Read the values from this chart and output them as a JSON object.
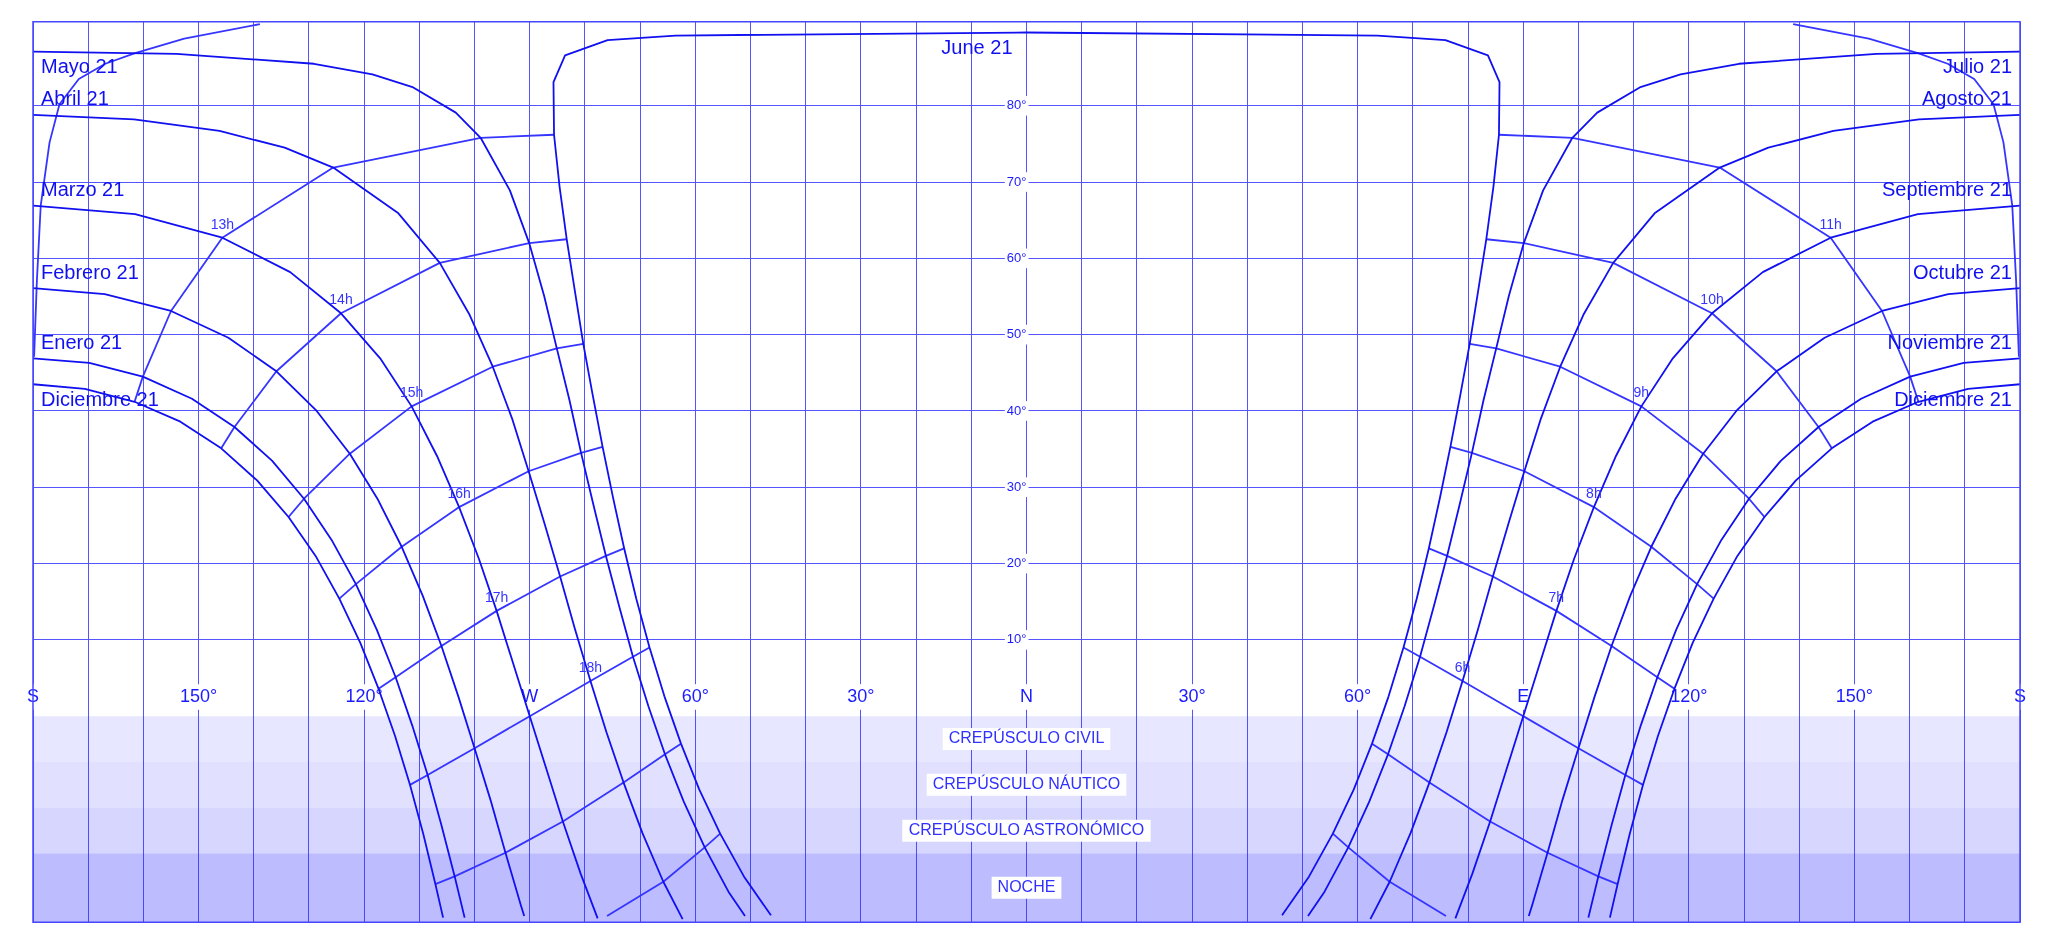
{
  "chart_data": {
    "type": "line",
    "xlim": [
      -180,
      180
    ],
    "ylim": [
      -27,
      91
    ],
    "xticks": [
      {
        "value": -180,
        "label": "S"
      },
      {
        "value": -170,
        "label": null
      },
      {
        "value": -160,
        "label": null
      },
      {
        "value": -150,
        "label": "150°"
      },
      {
        "value": -140,
        "label": null
      },
      {
        "value": -130,
        "label": null
      },
      {
        "value": -120,
        "label": "120°"
      },
      {
        "value": -110,
        "label": null
      },
      {
        "value": -100,
        "label": null
      },
      {
        "value": -90,
        "label": "W"
      },
      {
        "value": -80,
        "label": null
      },
      {
        "value": -70,
        "label": null
      },
      {
        "value": -60,
        "label": "60°"
      },
      {
        "value": -50,
        "label": null
      },
      {
        "value": -40,
        "label": null
      },
      {
        "value": -30,
        "label": "30°"
      },
      {
        "value": -20,
        "label": null
      },
      {
        "value": -10,
        "label": null
      },
      {
        "value": 0,
        "label": "N"
      },
      {
        "value": 10,
        "label": null
      },
      {
        "value": 20,
        "label": null
      },
      {
        "value": 30,
        "label": "30°"
      },
      {
        "value": 40,
        "label": null
      },
      {
        "value": 50,
        "label": null
      },
      {
        "value": 60,
        "label": "60°"
      },
      {
        "value": 70,
        "label": null
      },
      {
        "value": 80,
        "label": null
      },
      {
        "value": 90,
        "label": "E"
      },
      {
        "value": 100,
        "label": null
      },
      {
        "value": 110,
        "label": null
      },
      {
        "value": 120,
        "label": "120°"
      },
      {
        "value": 130,
        "label": null
      },
      {
        "value": 140,
        "label": null
      },
      {
        "value": 150,
        "label": "150°"
      },
      {
        "value": 160,
        "label": null
      },
      {
        "value": 170,
        "label": null
      },
      {
        "value": 180,
        "label": "S"
      }
    ],
    "yticks": [
      {
        "value": 10,
        "label": "10°"
      },
      {
        "value": 20,
        "label": "20°"
      },
      {
        "value": 30,
        "label": "30°"
      },
      {
        "value": 40,
        "label": "40°"
      },
      {
        "value": 50,
        "label": "50°"
      },
      {
        "value": 60,
        "label": "60°"
      },
      {
        "value": 70,
        "label": "70°"
      },
      {
        "value": 80,
        "label": "80°"
      }
    ],
    "grid": true,
    "bands": [
      {
        "axis": "y",
        "from": 0,
        "to": -6,
        "label": "CREPÚSCULO CIVIL",
        "color": "#3030ff"
      },
      {
        "axis": "y",
        "from": -6,
        "to": -12,
        "label": "CREPÚSCULO NÁUTICO",
        "color": "#3030ff"
      },
      {
        "axis": "y",
        "from": -12,
        "to": -18,
        "label": "CREPÚSCULO ASTRONÓMICO",
        "color": "#3030ff"
      },
      {
        "axis": "y",
        "from": -18,
        "to": -27,
        "label": "NOCHE",
        "color": "#3030ff"
      }
    ],
    "series": [
      {
        "name": "Diciembre 21",
        "color": "#1010f0",
        "x": [
          -180,
          -170.6,
          -161.6,
          -153.3,
          -145.9,
          -139.4,
          -133.7,
          -128.8,
          -124.5,
          -120.7,
          -117.4,
          -114.4,
          -111.7,
          -109.3,
          -107.1,
          -105.7
        ],
        "values": [
          43.5,
          42.9,
          41.2,
          38.6,
          35.1,
          30.9,
          26.1,
          21.0,
          15.4,
          9.6,
          3.6,
          -2.6,
          -9.0,
          -15.4,
          -22.0,
          -26.4
        ]
      },
      {
        "name": "Enero 21",
        "color": "#1010f0",
        "x": [
          -180,
          -169.8,
          -160.1,
          -151.2,
          -143.5,
          -136.7,
          -130.9,
          -125.9,
          -121.5,
          -117.7,
          -114.3,
          -111.3,
          -108.5,
          -106.0,
          -103.6,
          -101.8
        ],
        "values": [
          46.9,
          46.3,
          44.5,
          41.6,
          37.9,
          33.5,
          28.5,
          23.1,
          17.3,
          11.3,
          5.1,
          -1.2,
          -7.7,
          -14.3,
          -21.0,
          -26.4
        ]
      },
      {
        "name": "Febrero 21",
        "color": "#1010f0",
        "x": [
          -180,
          -167.0,
          -155.0,
          -144.6,
          -135.9,
          -128.6,
          -122.6,
          -117.6,
          -113.2,
          -109.4,
          -106.0,
          -102.9,
          -100.0,
          -97.1,
          -94.4,
          -91.6,
          -91.0
        ],
        "values": [
          56.1,
          55.3,
          53.1,
          49.6,
          45.2,
          40.0,
          34.4,
          28.5,
          22.2,
          15.8,
          9.2,
          2.5,
          -4.2,
          -11.0,
          -17.9,
          -24.8,
          -26.2
        ]
      },
      {
        "name": "Marzo 21",
        "color": "#1010f0",
        "x": [
          -180,
          -161.5,
          -145.7,
          -133.4,
          -124.2,
          -117.1,
          -111.4,
          -106.8,
          -102.8,
          -99.2,
          -96.0,
          -93.0,
          -90,
          -87.0,
          -84.0,
          -80.8,
          -77.7
        ],
        "values": [
          66.9,
          65.8,
          62.7,
          58.2,
          52.8,
          46.9,
          40.6,
          34.1,
          27.4,
          20.6,
          13.8,
          6.9,
          0,
          -6.9,
          -13.8,
          -20.6,
          -26.5
        ]
      },
      {
        "name": "Abril 21",
        "color": "#1010f0",
        "x": [
          -180,
          -161.7,
          -146.2,
          -134.4,
          -125.6,
          -113.8,
          -106.3,
          -100.9,
          -96.7,
          -93.2,
          -90.2,
          -87.3,
          -84.5,
          -81.8,
          -79.0,
          -76.1,
          -73.0,
          -69.6,
          -65.8,
          -62.3
        ],
        "values": [
          78.8,
          78.2,
          76.7,
          74.5,
          71.9,
          65.9,
          59.4,
          52.6,
          45.8,
          39.0,
          32.1,
          25.2,
          18.3,
          11.4,
          4.6,
          -2.1,
          -8.7,
          -15.3,
          -21.7,
          -26.6
        ]
      },
      {
        "name": "Mayo 21",
        "color": "#1010f0",
        "x": [
          -180,
          -154.0,
          -129.1,
          -118.5,
          -111.1,
          -103.4,
          -98.9,
          -93.6,
          -90.1,
          -87.4,
          -85.1,
          -82.8,
          -80.7,
          -78.5,
          -76.2,
          -73.8,
          -71.3,
          -68.5,
          -65.5,
          -62.1,
          -58.3,
          -54.0,
          -51.0
        ],
        "values": [
          87.1,
          86.8,
          85.5,
          84.1,
          82.4,
          79.1,
          75.8,
          68.9,
          62.0,
          55.1,
          48.2,
          41.4,
          34.5,
          27.8,
          21.0,
          14.4,
          7.8,
          1.3,
          -5.0,
          -11.2,
          -17.2,
          -23.0,
          -26.2
        ]
      },
      {
        "name": "June 21",
        "color": "#1010f0",
        "x": [
          46.3,
          51.2,
          55.5,
          59.3,
          62.6,
          65.6,
          68.3,
          70.7,
          72.9,
          74.9,
          76.8,
          78.6,
          80.3,
          81.8,
          83.3,
          84.6,
          85.6,
          85.7,
          83.6,
          75.9,
          63.6,
          0,
          -63.6,
          -75.9,
          -83.6,
          -85.7,
          -85.6,
          -84.6,
          -83.3,
          -81.8,
          -80.3,
          -78.6,
          -76.8,
          -74.9,
          -72.9,
          -70.7,
          -68.3,
          -65.6,
          -62.6,
          -59.3,
          -55.5,
          -51.2,
          -46.3
        ],
        "values": [
          -26.1,
          -21.0,
          -15.4,
          -9.6,
          -3.6,
          2.6,
          9.0,
          15.4,
          22.0,
          28.6,
          35.3,
          42.1,
          48.8,
          55.6,
          62.5,
          69.4,
          76.2,
          83.1,
          86.6,
          88.6,
          89.2,
          89.6,
          89.2,
          88.6,
          86.6,
          83.1,
          76.2,
          69.4,
          62.5,
          55.6,
          48.8,
          42.1,
          35.3,
          28.6,
          22.0,
          15.4,
          9.0,
          2.6,
          -3.6,
          -9.6,
          -15.4,
          -21.0,
          -26.1
        ]
      },
      {
        "name": "Julio 21",
        "color": "#1010f0",
        "x": [
          180,
          154.0,
          129.1,
          118.5,
          111.1,
          103.4,
          98.9,
          93.6,
          90.1,
          87.4,
          85.1,
          82.8,
          80.7,
          78.5,
          76.2,
          73.8,
          71.3,
          68.5,
          65.5,
          62.1,
          58.3,
          54.0,
          51.0
        ],
        "values": [
          87.1,
          86.8,
          85.5,
          84.1,
          82.4,
          79.1,
          75.8,
          68.9,
          62.0,
          55.1,
          48.2,
          41.4,
          34.5,
          27.8,
          21.0,
          14.4,
          7.8,
          1.3,
          -5.0,
          -11.2,
          -17.2,
          -23.0,
          -26.2
        ]
      },
      {
        "name": "Agosto 21",
        "color": "#1010f0",
        "x": [
          180,
          161.7,
          146.2,
          134.4,
          125.6,
          113.8,
          106.3,
          100.9,
          96.7,
          93.2,
          90.2,
          87.3,
          84.5,
          81.8,
          79.0,
          76.1,
          73.0,
          69.6,
          65.8,
          62.3
        ],
        "values": [
          78.8,
          78.2,
          76.7,
          74.5,
          71.9,
          65.9,
          59.4,
          52.6,
          45.8,
          39.0,
          32.1,
          25.2,
          18.3,
          11.4,
          4.6,
          -2.1,
          -8.7,
          -15.3,
          -21.7,
          -26.6
        ]
      },
      {
        "name": "Septiembre 21",
        "color": "#1010f0",
        "x": [
          180,
          161.5,
          145.7,
          133.4,
          124.2,
          117.1,
          111.4,
          106.8,
          102.8,
          99.2,
          96.0,
          93.0,
          90,
          87.0,
          84.0,
          80.8,
          77.7
        ],
        "values": [
          66.9,
          65.8,
          62.7,
          58.2,
          52.8,
          46.9,
          40.6,
          34.1,
          27.4,
          20.6,
          13.8,
          6.9,
          0,
          -6.9,
          -13.8,
          -20.6,
          -26.5
        ]
      },
      {
        "name": "Octubre 21",
        "color": "#1010f0",
        "x": [
          180,
          167.0,
          155.0,
          144.6,
          135.9,
          128.6,
          122.6,
          117.6,
          113.2,
          109.4,
          106.0,
          102.9,
          100.0,
          97.1,
          94.4,
          91.6,
          91.0
        ],
        "values": [
          56.1,
          55.3,
          53.1,
          49.6,
          45.2,
          40.0,
          34.4,
          28.5,
          22.2,
          15.8,
          9.2,
          2.5,
          -4.2,
          -11.0,
          -17.9,
          -24.8,
          -26.2
        ]
      },
      {
        "name": "Noviembre 21",
        "color": "#1010f0",
        "x": [
          180,
          169.8,
          160.1,
          151.2,
          143.5,
          136.7,
          130.9,
          125.9,
          121.5,
          117.7,
          114.3,
          111.3,
          108.5,
          106.0,
          103.6,
          101.8
        ],
        "values": [
          46.9,
          46.3,
          44.5,
          41.6,
          37.9,
          33.5,
          28.5,
          23.1,
          17.3,
          11.3,
          5.1,
          -1.2,
          -7.7,
          -14.3,
          -21.0,
          -26.4
        ]
      },
      {
        "name": "Diciembre 21",
        "color": "#1010f0",
        "x": [
          180,
          170.6,
          161.6,
          153.3,
          145.9,
          139.4,
          133.7,
          128.8,
          124.5,
          120.7,
          117.4,
          114.4,
          111.7,
          109.3,
          107.1,
          105.7
        ],
        "values": [
          43.5,
          42.9,
          41.2,
          38.6,
          35.1,
          30.9,
          26.1,
          21.0,
          15.4,
          9.6,
          3.6,
          -2.6,
          -9.0,
          -15.4,
          -22.0,
          -26.4
        ]
      },
      {
        "name": "13h",
        "color": "#3535ff",
        "x": [
          -161.6,
          -160.1,
          -155.0,
          -145.7,
          -125.6,
          -98.9,
          -85.6
        ],
        "values": [
          41.2,
          44.5,
          53.1,
          62.7,
          71.9,
          75.8,
          76.2
        ]
      },
      {
        "name": "14h",
        "color": "#3535ff",
        "x": [
          -145.9,
          -143.5,
          -135.9,
          -124.2,
          -106.3,
          -90.1,
          -83.3
        ],
        "values": [
          35.1,
          37.9,
          45.2,
          52.8,
          59.4,
          62.0,
          62.5
        ]
      },
      {
        "name": "15h",
        "color": "#3535ff",
        "x": [
          -133.7,
          -130.9,
          -122.6,
          -111.4,
          -96.7,
          -85.1,
          -80.3
        ],
        "values": [
          26.1,
          28.5,
          34.4,
          40.6,
          45.8,
          48.2,
          48.8
        ]
      },
      {
        "name": "16h",
        "color": "#3535ff",
        "x": [
          -124.5,
          -121.5,
          -113.2,
          -102.8,
          -90.2,
          -80.7,
          -76.8
        ],
        "values": [
          15.4,
          17.3,
          22.2,
          27.4,
          32.1,
          34.5,
          35.3
        ]
      },
      {
        "name": "17h",
        "color": "#3535ff",
        "x": [
          -117.4,
          -114.3,
          -106.0,
          -96.0,
          -84.5,
          -76.2,
          -72.9
        ],
        "values": [
          3.6,
          5.1,
          9.2,
          13.8,
          18.3,
          21.0,
          22.0
        ]
      },
      {
        "name": "18h",
        "color": "#3535ff",
        "x": [
          -111.7,
          -108.5,
          -100.0,
          -90,
          -79.0,
          -71.3,
          -68.3
        ],
        "values": [
          -9.0,
          -7.7,
          -4.2,
          0,
          4.6,
          7.8,
          9.0
        ]
      },
      {
        "color": "#3535ff",
        "x": [
          -107.1,
          -103.6,
          -94.4,
          -84.0,
          -73.0,
          -65.5,
          -62.6
        ],
        "values": [
          -22.0,
          -21.0,
          -17.9,
          -13.8,
          -8.7,
          -5.0,
          -3.6
        ]
      },
      {
        "color": "#3535ff",
        "x": [
          -76,
          -65.8,
          -58.3,
          -55.5
        ],
        "values": [
          -26.2,
          -21.7,
          -17.2,
          -15.4
        ]
      },
      {
        "name": "11h",
        "color": "#3535ff",
        "x": [
          161.6,
          160.1,
          155.0,
          145.7,
          125.6,
          98.9,
          85.6
        ],
        "values": [
          41.2,
          44.5,
          53.1,
          62.7,
          71.9,
          75.8,
          76.2
        ]
      },
      {
        "name": "10h",
        "color": "#3535ff",
        "x": [
          145.9,
          143.5,
          135.9,
          124.2,
          106.3,
          90.1,
          83.3
        ],
        "values": [
          35.1,
          37.9,
          45.2,
          52.8,
          59.4,
          62.0,
          62.5
        ]
      },
      {
        "name": "9h",
        "color": "#3535ff",
        "x": [
          133.7,
          130.9,
          122.6,
          111.4,
          96.7,
          85.1,
          80.3
        ],
        "values": [
          26.1,
          28.5,
          34.4,
          40.6,
          45.8,
          48.2,
          48.8
        ]
      },
      {
        "name": "8h",
        "color": "#3535ff",
        "x": [
          124.5,
          121.5,
          113.2,
          102.8,
          90.2,
          80.7,
          76.8
        ],
        "values": [
          15.4,
          17.3,
          22.2,
          27.4,
          32.1,
          34.5,
          35.3
        ]
      },
      {
        "name": "7h",
        "color": "#3535ff",
        "x": [
          117.4,
          114.3,
          106.0,
          96.0,
          84.5,
          76.2,
          72.9
        ],
        "values": [
          3.6,
          5.1,
          9.2,
          13.8,
          18.3,
          21.0,
          22.0
        ]
      },
      {
        "name": "6h",
        "color": "#3535ff",
        "x": [
          111.7,
          108.5,
          100.0,
          90,
          79.0,
          71.3,
          68.3
        ],
        "values": [
          -9.0,
          -7.7,
          -4.2,
          0,
          4.6,
          7.8,
          9.0
        ]
      },
      {
        "color": "#3535ff",
        "x": [
          107.1,
          103.6,
          94.4,
          84.0,
          73.0,
          65.5,
          62.6
        ],
        "values": [
          -22.0,
          -21.0,
          -17.9,
          -13.8,
          -8.7,
          -5.0,
          -3.6
        ]
      },
      {
        "color": "#3535ff",
        "x": [
          76,
          65.8,
          58.3,
          55.5
        ],
        "values": [
          -26.2,
          -21.7,
          -17.2,
          -15.4
        ]
      },
      {
        "color": "#3535ff",
        "x": [
          -179.8,
          -179.3,
          -178.6,
          -177.0,
          -175.2,
          -171.7,
          -166.9,
          -161.5,
          -152.6,
          -138.9
        ],
        "values": [
          47.1,
          57.0,
          66.9,
          75.2,
          80.2,
          83.5,
          85.5,
          86.9,
          88.8,
          90.7
        ]
      },
      {
        "color": "#3535ff",
        "x": [
          179.8,
          179.3,
          178.6,
          177.0,
          175.2,
          171.7,
          166.9,
          161.5,
          152.6,
          138.9
        ],
        "values": [
          47.1,
          57.0,
          66.9,
          75.2,
          80.2,
          83.5,
          85.5,
          86.9,
          88.8,
          90.7
        ]
      }
    ]
  }
}
